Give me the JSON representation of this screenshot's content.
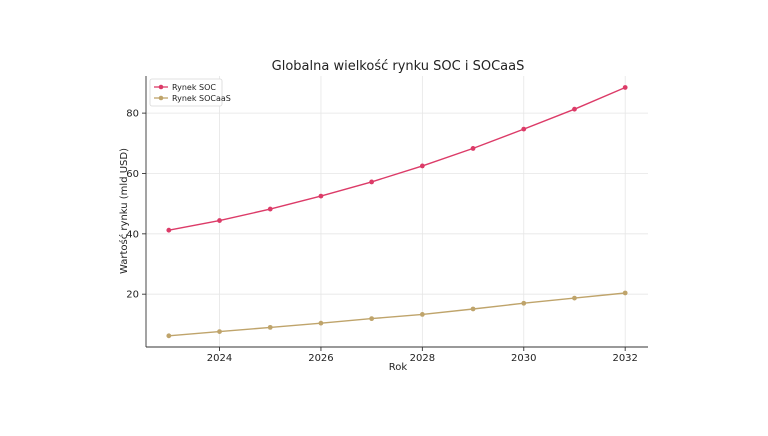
{
  "chart_data": {
    "type": "line",
    "title": "Globalna wielkość rynku SOC i SOCaaS",
    "xlabel": "Rok",
    "ylabel": "Wartość rynku (mld USD)",
    "x": [
      2023,
      2024,
      2025,
      2026,
      2027,
      2028,
      2029,
      2030,
      2031,
      2032
    ],
    "xticks": [
      2024,
      2026,
      2028,
      2030,
      2032
    ],
    "yticks": [
      20,
      40,
      60,
      80
    ],
    "xlim": [
      2022.55,
      2032.45
    ],
    "ylim": [
      2.5,
      92.3
    ],
    "grid": true,
    "legend_position": "top-left",
    "series": [
      {
        "name": "Rynek SOC",
        "color": "#dc3b68",
        "values": [
          41.2,
          44.4,
          48.2,
          52.5,
          57.2,
          62.5,
          68.3,
          74.7,
          81.3,
          88.5
        ]
      },
      {
        "name": "Rynek SOCaaS",
        "color": "#bfa46b",
        "values": [
          6.2,
          7.6,
          9.0,
          10.4,
          11.9,
          13.3,
          15.1,
          17.0,
          18.7,
          20.4
        ]
      }
    ]
  }
}
